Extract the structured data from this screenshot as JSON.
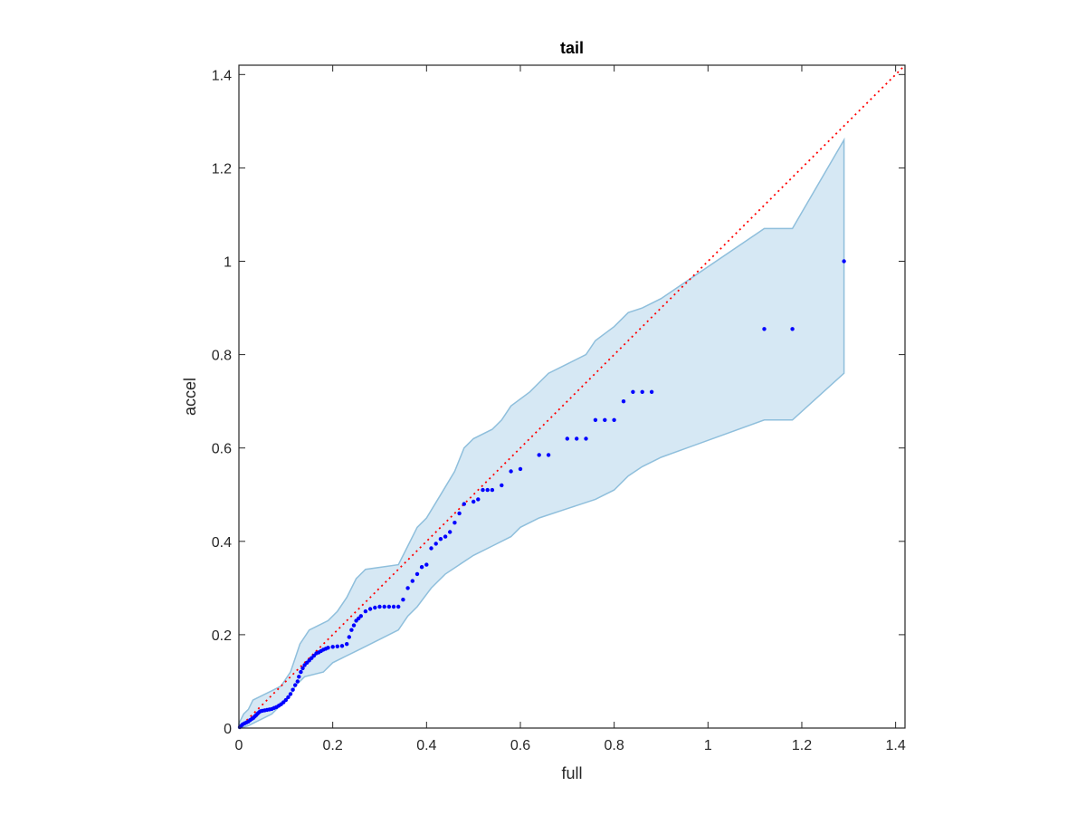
{
  "chart_data": {
    "type": "scatter",
    "title": "tail",
    "xlabel": "full",
    "ylabel": "accel",
    "xlim": [
      0,
      1.42
    ],
    "ylim": [
      0,
      1.42
    ],
    "xticks": [
      0,
      0.2,
      0.4,
      0.6,
      0.8,
      1,
      1.2,
      1.4
    ],
    "yticks": [
      0,
      0.2,
      0.4,
      0.6,
      0.8,
      1,
      1.2,
      1.4
    ],
    "xtick_labels": [
      "0",
      "0.2",
      "0.4",
      "0.6",
      "0.8",
      "1",
      "1.2",
      "1.4"
    ],
    "ytick_labels": [
      "0",
      "0.2",
      "0.4",
      "0.6",
      "0.8",
      "1",
      "1.2",
      "1.4"
    ],
    "grid": false,
    "reference_line": {
      "style": "dotted",
      "color": "#ff0000",
      "from": [
        0,
        0
      ],
      "to": [
        1.42,
        1.42
      ]
    },
    "band": {
      "fill": "#d6e8f4",
      "stroke": "#8fbfdc",
      "upper": [
        [
          0,
          0.01
        ],
        [
          0.005,
          0.02
        ],
        [
          0.01,
          0.03
        ],
        [
          0.02,
          0.04
        ],
        [
          0.03,
          0.06
        ],
        [
          0.05,
          0.07
        ],
        [
          0.07,
          0.08
        ],
        [
          0.09,
          0.09
        ],
        [
          0.11,
          0.12
        ],
        [
          0.12,
          0.15
        ],
        [
          0.13,
          0.18
        ],
        [
          0.15,
          0.21
        ],
        [
          0.17,
          0.22
        ],
        [
          0.19,
          0.23
        ],
        [
          0.21,
          0.25
        ],
        [
          0.23,
          0.28
        ],
        [
          0.25,
          0.32
        ],
        [
          0.27,
          0.34
        ],
        [
          0.34,
          0.35
        ],
        [
          0.36,
          0.39
        ],
        [
          0.38,
          0.43
        ],
        [
          0.4,
          0.45
        ],
        [
          0.43,
          0.5
        ],
        [
          0.46,
          0.55
        ],
        [
          0.48,
          0.6
        ],
        [
          0.5,
          0.62
        ],
        [
          0.54,
          0.64
        ],
        [
          0.56,
          0.66
        ],
        [
          0.58,
          0.69
        ],
        [
          0.62,
          0.72
        ],
        [
          0.64,
          0.74
        ],
        [
          0.66,
          0.76
        ],
        [
          0.7,
          0.78
        ],
        [
          0.74,
          0.8
        ],
        [
          0.76,
          0.83
        ],
        [
          0.8,
          0.86
        ],
        [
          0.83,
          0.89
        ],
        [
          0.86,
          0.9
        ],
        [
          0.9,
          0.92
        ],
        [
          1.12,
          1.07
        ],
        [
          1.18,
          1.07
        ],
        [
          1.29,
          1.26
        ]
      ],
      "lower": [
        [
          1.29,
          0.76
        ],
        [
          1.18,
          0.66
        ],
        [
          1.12,
          0.66
        ],
        [
          0.9,
          0.58
        ],
        [
          0.86,
          0.56
        ],
        [
          0.83,
          0.54
        ],
        [
          0.8,
          0.51
        ],
        [
          0.76,
          0.49
        ],
        [
          0.7,
          0.47
        ],
        [
          0.64,
          0.45
        ],
        [
          0.6,
          0.43
        ],
        [
          0.58,
          0.41
        ],
        [
          0.54,
          0.39
        ],
        [
          0.5,
          0.37
        ],
        [
          0.47,
          0.35
        ],
        [
          0.44,
          0.33
        ],
        [
          0.41,
          0.3
        ],
        [
          0.38,
          0.26
        ],
        [
          0.36,
          0.24
        ],
        [
          0.34,
          0.21
        ],
        [
          0.3,
          0.19
        ],
        [
          0.26,
          0.17
        ],
        [
          0.22,
          0.15
        ],
        [
          0.2,
          0.14
        ],
        [
          0.18,
          0.12
        ],
        [
          0.14,
          0.11
        ],
        [
          0.12,
          0.09
        ],
        [
          0.11,
          0.07
        ],
        [
          0.09,
          0.05
        ],
        [
          0.07,
          0.03
        ],
        [
          0.05,
          0.02
        ],
        [
          0.03,
          0.01
        ],
        [
          0.02,
          0.005
        ],
        [
          0.01,
          0.002
        ],
        [
          0,
          0
        ]
      ]
    },
    "series": [
      {
        "color": "#0000ff",
        "points": [
          [
            0.002,
            0.002
          ],
          [
            0.005,
            0.005
          ],
          [
            0.008,
            0.008
          ],
          [
            0.012,
            0.01
          ],
          [
            0.016,
            0.012
          ],
          [
            0.02,
            0.014
          ],
          [
            0.024,
            0.017
          ],
          [
            0.028,
            0.02
          ],
          [
            0.031,
            0.022
          ],
          [
            0.034,
            0.025
          ],
          [
            0.037,
            0.028
          ],
          [
            0.04,
            0.031
          ],
          [
            0.043,
            0.034
          ],
          [
            0.046,
            0.036
          ],
          [
            0.05,
            0.037
          ],
          [
            0.055,
            0.038
          ],
          [
            0.06,
            0.039
          ],
          [
            0.065,
            0.04
          ],
          [
            0.07,
            0.041
          ],
          [
            0.075,
            0.043
          ],
          [
            0.08,
            0.045
          ],
          [
            0.085,
            0.048
          ],
          [
            0.09,
            0.051
          ],
          [
            0.095,
            0.055
          ],
          [
            0.1,
            0.06
          ],
          [
            0.105,
            0.066
          ],
          [
            0.11,
            0.073
          ],
          [
            0.115,
            0.082
          ],
          [
            0.12,
            0.092
          ],
          [
            0.125,
            0.1
          ],
          [
            0.128,
            0.11
          ],
          [
            0.132,
            0.12
          ],
          [
            0.136,
            0.128
          ],
          [
            0.14,
            0.135
          ],
          [
            0.145,
            0.14
          ],
          [
            0.15,
            0.145
          ],
          [
            0.155,
            0.15
          ],
          [
            0.16,
            0.155
          ],
          [
            0.165,
            0.16
          ],
          [
            0.17,
            0.162
          ],
          [
            0.175,
            0.165
          ],
          [
            0.18,
            0.168
          ],
          [
            0.185,
            0.17
          ],
          [
            0.19,
            0.172
          ],
          [
            0.2,
            0.174
          ],
          [
            0.21,
            0.175
          ],
          [
            0.22,
            0.176
          ],
          [
            0.23,
            0.18
          ],
          [
            0.235,
            0.195
          ],
          [
            0.24,
            0.21
          ],
          [
            0.245,
            0.22
          ],
          [
            0.25,
            0.23
          ],
          [
            0.255,
            0.235
          ],
          [
            0.26,
            0.24
          ],
          [
            0.27,
            0.25
          ],
          [
            0.28,
            0.255
          ],
          [
            0.29,
            0.258
          ],
          [
            0.3,
            0.26
          ],
          [
            0.31,
            0.26
          ],
          [
            0.32,
            0.26
          ],
          [
            0.33,
            0.26
          ],
          [
            0.34,
            0.26
          ],
          [
            0.35,
            0.275
          ],
          [
            0.36,
            0.3
          ],
          [
            0.37,
            0.315
          ],
          [
            0.38,
            0.33
          ],
          [
            0.39,
            0.345
          ],
          [
            0.4,
            0.35
          ],
          [
            0.41,
            0.385
          ],
          [
            0.42,
            0.395
          ],
          [
            0.43,
            0.405
          ],
          [
            0.44,
            0.41
          ],
          [
            0.45,
            0.42
          ],
          [
            0.46,
            0.44
          ],
          [
            0.47,
            0.46
          ],
          [
            0.48,
            0.48
          ],
          [
            0.5,
            0.485
          ],
          [
            0.51,
            0.49
          ],
          [
            0.52,
            0.51
          ],
          [
            0.53,
            0.51
          ],
          [
            0.54,
            0.51
          ],
          [
            0.56,
            0.52
          ],
          [
            0.58,
            0.55
          ],
          [
            0.6,
            0.555
          ],
          [
            0.64,
            0.585
          ],
          [
            0.66,
            0.585
          ],
          [
            0.7,
            0.62
          ],
          [
            0.72,
            0.62
          ],
          [
            0.74,
            0.62
          ],
          [
            0.76,
            0.66
          ],
          [
            0.78,
            0.66
          ],
          [
            0.8,
            0.66
          ],
          [
            0.82,
            0.7
          ],
          [
            0.84,
            0.72
          ],
          [
            0.86,
            0.72
          ],
          [
            0.88,
            0.72
          ],
          [
            1.12,
            0.855
          ],
          [
            1.18,
            0.855
          ],
          [
            1.29,
            1.0
          ]
        ]
      }
    ]
  }
}
